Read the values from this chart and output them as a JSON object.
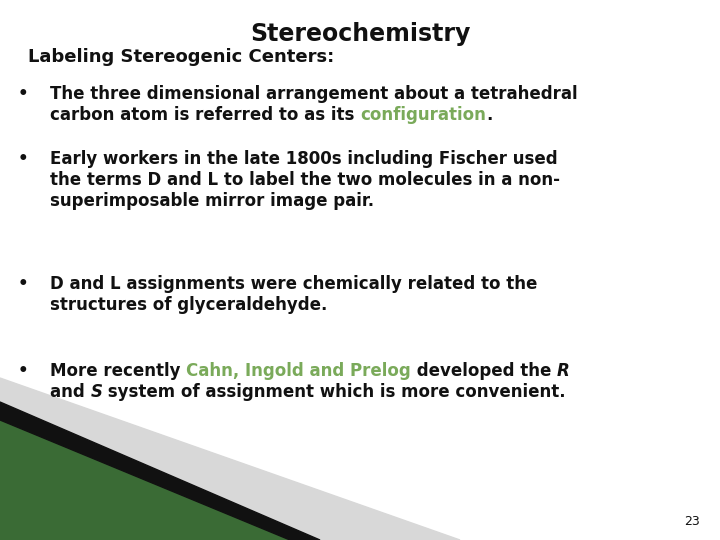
{
  "title": "Stereochemistry",
  "subtitle": "Labeling Stereogenic Centers:",
  "bullet1_line1": "The three dimensional arrangement about a tetrahedral",
  "bullet1_line2_pre": "carbon atom is referred to as its ",
  "bullet1_colored": "configuration",
  "bullet1_end": ".",
  "bullet2": "Early workers in the late 1800s including Fischer used\nthe terms D and L to label the two molecules in a non-\nsuperimposable mirror image pair.",
  "bullet3": "D and L assignments were chemically related to the\nstructures of glyceraldehyde.",
  "bullet4_pre": "More recently ",
  "bullet4_colored": "Cahn, Ingold and Prelog",
  "bullet4_mid": " developed the ",
  "bullet4_italic1": "R",
  "bullet4_line2_pre": "and ",
  "bullet4_italic2": "S",
  "bullet4_line2_post": " system of assignment which is more convenient.",
  "page_number": "23",
  "bg_color": "#ffffff",
  "title_color": "#111111",
  "text_color": "#111111",
  "highlight_color": "#7aaa5a",
  "title_fontsize": 17,
  "subtitle_fontsize": 13,
  "body_fontsize": 12,
  "page_num_fontsize": 9,
  "corner_green": "#3a6b35",
  "corner_black": "#111111",
  "corner_lightgray": "#d8d8d8"
}
